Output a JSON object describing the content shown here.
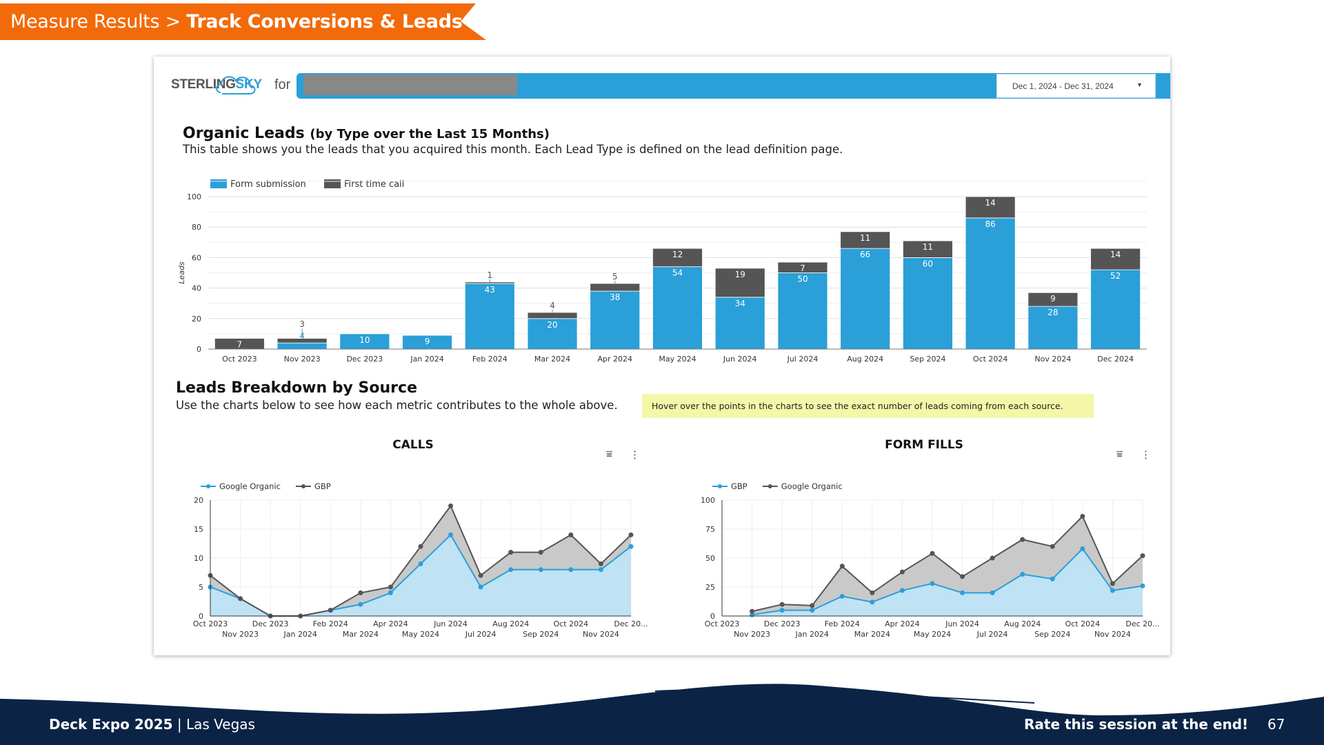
{
  "banner": {
    "section": "Measure Results > ",
    "title": "Track Conversions & Leads",
    "color": "#F26A0A"
  },
  "header": {
    "logo_text_a": "STERLING",
    "logo_text_b": "SKY",
    "for_label": "for",
    "date_range": "Dec 1, 2024 - Dec 31, 2024",
    "accent": "#2A9FD8"
  },
  "organic": {
    "title": "Organic Leads",
    "title_suffix": "(by Type over the Last 15 Months)",
    "description": "This table shows you the leads that you acquired this month.  Each Lead Type is defined on the lead definition page."
  },
  "breakdown": {
    "title": "Leads Breakdown by Source",
    "description": "Use the charts below to see how each metric contributes to the whole above.",
    "note": "Hover over the points in the charts to see the exact number of leads coming from each source."
  },
  "chart_data": [
    {
      "type": "bar",
      "stacked": true,
      "ylabel": "Leads",
      "ylim": [
        0,
        100
      ],
      "yticks": [
        0,
        20,
        40,
        60,
        80,
        100
      ],
      "grid": true,
      "legend": "top-left",
      "categories": [
        "Oct 2023",
        "Nov 2023",
        "Dec 2023",
        "Jan 2024",
        "Feb 2024",
        "Mar 2024",
        "Apr 2024",
        "May 2024",
        "Jun 2024",
        "Jul 2024",
        "Aug 2024",
        "Sep 2024",
        "Oct 2024",
        "Nov 2024",
        "Dec 2024"
      ],
      "series": [
        {
          "name": "Form submission",
          "color": "#2A9FD8",
          "values": [
            0,
            4,
            10,
            9,
            43,
            20,
            38,
            54,
            34,
            50,
            66,
            60,
            86,
            28,
            52
          ]
        },
        {
          "name": "First time call",
          "color": "#555555",
          "values": [
            7,
            3,
            0,
            0,
            1,
            4,
            5,
            12,
            19,
            7,
            11,
            11,
            14,
            9,
            14
          ]
        }
      ]
    },
    {
      "type": "area",
      "stacked": true,
      "title": "CALLS",
      "ylim": [
        0,
        20
      ],
      "yticks": [
        0,
        5,
        10,
        15,
        20
      ],
      "grid": true,
      "legend": "top-left",
      "categories": [
        "Oct 2023",
        "Nov 2023",
        "Dec 2023",
        "Jan 2024",
        "Feb 2024",
        "Mar 2024",
        "Apr 2024",
        "May 2024",
        "Jun 2024",
        "Jul 2024",
        "Aug 2024",
        "Sep 2024",
        "Oct 2024",
        "Nov 2024",
        "Dec 20..."
      ],
      "series": [
        {
          "name": "Google Organic",
          "color": "#2A9FD8",
          "values": [
            5,
            3,
            0,
            0,
            1,
            2,
            4,
            9,
            14,
            5,
            8,
            8,
            8,
            8,
            12
          ]
        },
        {
          "name": "GBP",
          "color": "#555555",
          "values": [
            2,
            0,
            0,
            0,
            0,
            2,
            1,
            3,
            5,
            2,
            3,
            3,
            6,
            1,
            2
          ]
        }
      ]
    },
    {
      "type": "area",
      "stacked": true,
      "title": "FORM FILLS",
      "ylim": [
        0,
        100
      ],
      "yticks": [
        0,
        25,
        50,
        75,
        100
      ],
      "grid": true,
      "legend": "top-left",
      "categories": [
        "Oct 2023",
        "Nov 2023",
        "Dec 2023",
        "Jan 2024",
        "Feb 2024",
        "Mar 2024",
        "Apr 2024",
        "May 2024",
        "Jun 2024",
        "Jul 2024",
        "Aug 2024",
        "Sep 2024",
        "Oct 2024",
        "Nov 2024",
        "Dec 20..."
      ],
      "series": [
        {
          "name": "GBP",
          "color": "#2A9FD8",
          "values": [
            null,
            1,
            5,
            5,
            17,
            12,
            22,
            28,
            20,
            20,
            36,
            32,
            58,
            22,
            26
          ]
        },
        {
          "name": "Google Organic",
          "color": "#555555",
          "values": [
            null,
            3,
            5,
            4,
            26,
            8,
            16,
            26,
            14,
            30,
            30,
            28,
            28,
            6,
            26
          ]
        }
      ]
    }
  ],
  "footer": {
    "event": "Deck Expo 2025",
    "location": "Las Vegas",
    "separator": "|",
    "cta": "Rate this session at the end!",
    "page": "67",
    "color": "#0B2446"
  },
  "icons": {
    "filter": "filter-icon",
    "more": "more-vert-icon",
    "dropdown": "caret-down-icon"
  }
}
